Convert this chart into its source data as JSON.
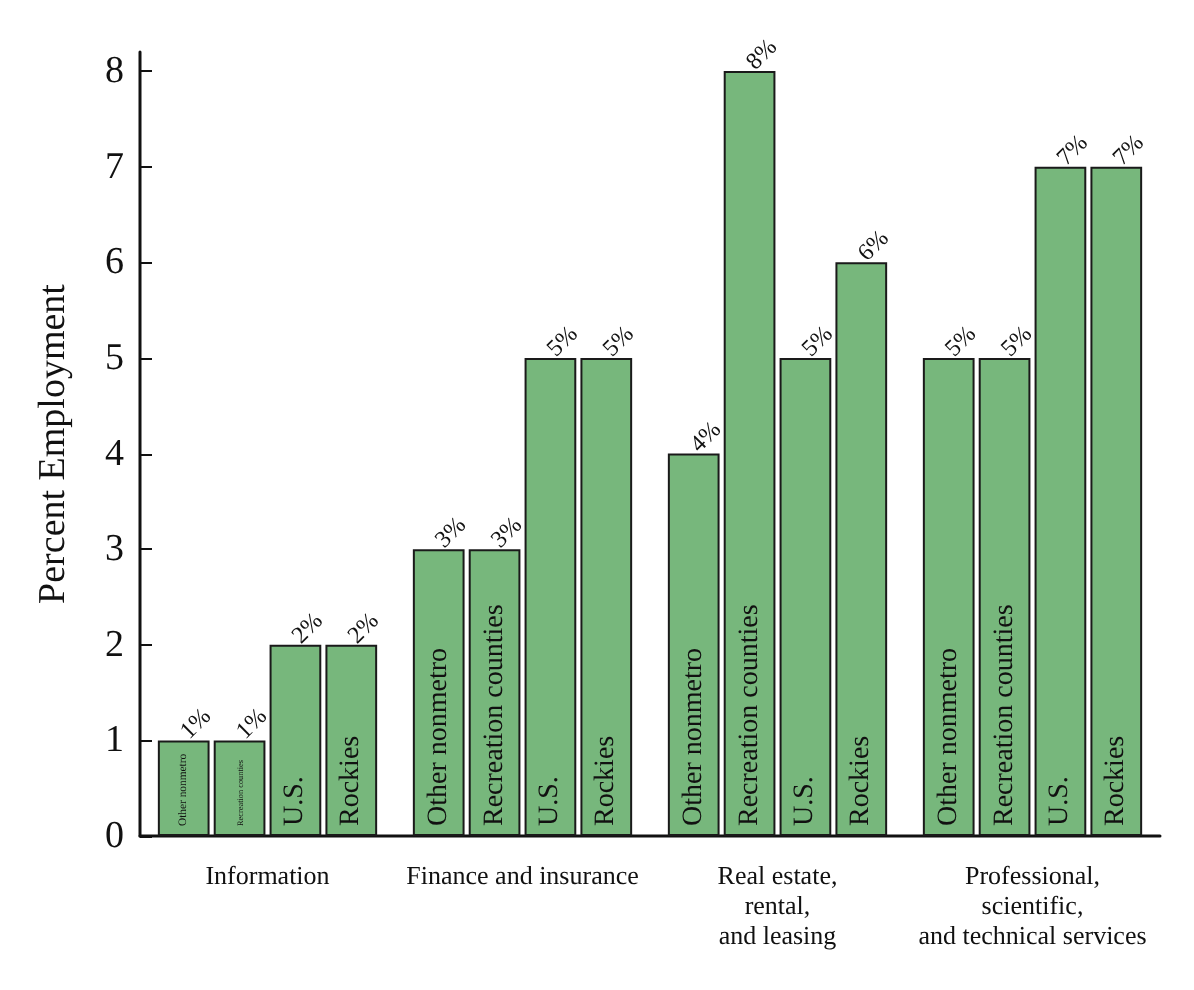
{
  "chart_data": {
    "type": "bar",
    "ylabel": "Percent Employment",
    "categories": [
      "Information",
      "Finance and insurance",
      "Real estate,\nrental,\nand leasing",
      "Professional,\nscientific,\nand technical services"
    ],
    "series": [
      {
        "name": "Other nonmetro",
        "color": "#77b77c",
        "values": [
          1,
          3,
          4,
          5
        ],
        "value_labels": [
          "1%",
          "3%",
          "4%",
          "5%"
        ]
      },
      {
        "name": "Recreation counties",
        "color": "#77b77c",
        "values": [
          1,
          3,
          8,
          5
        ],
        "value_labels": [
          "1%",
          "3%",
          "8%",
          "5%"
        ]
      },
      {
        "name": "U.S.",
        "color": "#77b77c",
        "values": [
          2,
          5,
          5,
          7
        ],
        "value_labels": [
          "2%",
          "5%",
          "5%",
          "7%"
        ]
      },
      {
        "name": "Rockies",
        "color": "#77b77c",
        "values": [
          2,
          5,
          6,
          7
        ],
        "value_labels": [
          "2%",
          "5%",
          "6%",
          "7%"
        ]
      }
    ],
    "ylim": [
      0,
      8.2
    ],
    "yticks": [
      0,
      1,
      2,
      3,
      4,
      5,
      6,
      7,
      8
    ],
    "grid": false,
    "legend": false
  }
}
